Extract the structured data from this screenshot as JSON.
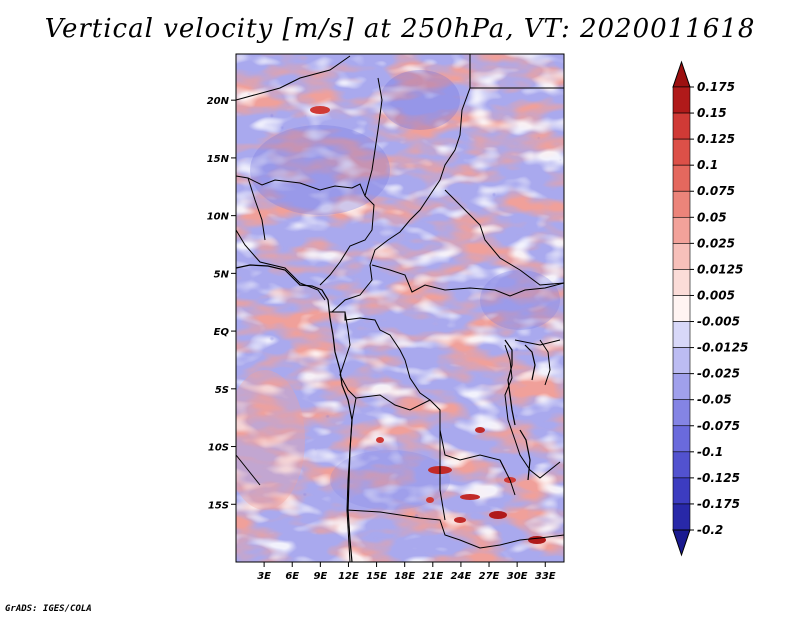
{
  "title": "Vertical velocity [m/s] at 250hPa, VT: 2020011618",
  "credit": "GrADS: IGES/COLA",
  "map": {
    "lon_range": [
      0,
      35
    ],
    "lat_range": [
      -20,
      24
    ],
    "lat_ticks": [
      {
        "value": 20,
        "label": "20N"
      },
      {
        "value": 15,
        "label": "15N"
      },
      {
        "value": 10,
        "label": "10N"
      },
      {
        "value": 5,
        "label": "5N"
      },
      {
        "value": 0,
        "label": "EQ"
      },
      {
        "value": -5,
        "label": "5S"
      },
      {
        "value": -10,
        "label": "10S"
      },
      {
        "value": -15,
        "label": "15S"
      }
    ],
    "lon_ticks": [
      {
        "value": 3,
        "label": "3E"
      },
      {
        "value": 6,
        "label": "6E"
      },
      {
        "value": 9,
        "label": "9E"
      },
      {
        "value": 12,
        "label": "12E"
      },
      {
        "value": 15,
        "label": "15E"
      },
      {
        "value": 18,
        "label": "18E"
      },
      {
        "value": 21,
        "label": "21E"
      },
      {
        "value": 24,
        "label": "24E"
      },
      {
        "value": 27,
        "label": "27E"
      },
      {
        "value": 30,
        "label": "30E"
      },
      {
        "value": 33,
        "label": "33E"
      }
    ]
  },
  "colorbar": {
    "levels": [
      {
        "label": "0.175",
        "color": "#b01a1a"
      },
      {
        "label": "0.15",
        "color": "#c22a28"
      },
      {
        "label": "0.125",
        "color": "#d03a36"
      },
      {
        "label": "0.1",
        "color": "#dc5048"
      },
      {
        "label": "0.075",
        "color": "#e4685e"
      },
      {
        "label": "0.05",
        "color": "#ec847a"
      },
      {
        "label": "0.025",
        "color": "#f2a29a"
      },
      {
        "label": "0.0125",
        "color": "#f7c0ba"
      },
      {
        "label": "0.005",
        "color": "#fbdcd8"
      },
      {
        "label": "-0.005",
        "color": "#fff4f2"
      },
      {
        "label": "-0.0125",
        "color": "#d8d8f8"
      },
      {
        "label": "-0.025",
        "color": "#bcbcf2"
      },
      {
        "label": "-0.05",
        "color": "#a0a0ec"
      },
      {
        "label": "-0.075",
        "color": "#8484e4"
      },
      {
        "label": "-0.1",
        "color": "#6a6adc"
      },
      {
        "label": "-0.125",
        "color": "#5252cf"
      },
      {
        "label": "-0.175",
        "color": "#3c3cc0"
      },
      {
        "label": "-0.2",
        "color": "#2828a8"
      }
    ],
    "top_arrow_color": "#9c1010",
    "bottom_arrow_color": "#1a1a90"
  }
}
